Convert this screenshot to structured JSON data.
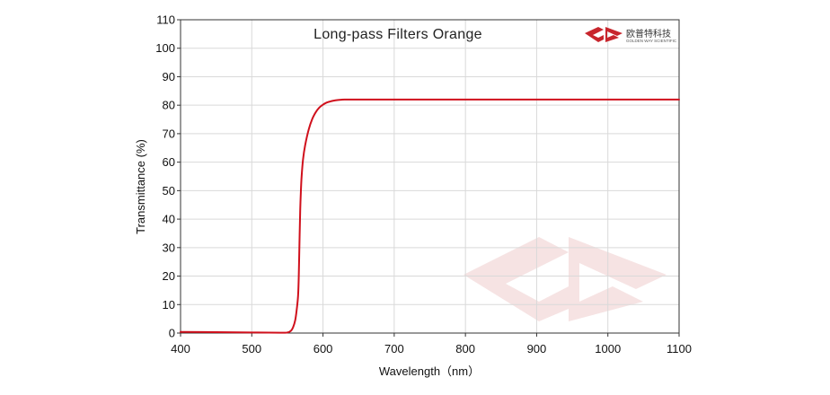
{
  "chart_data": {
    "type": "line",
    "title": "Long-pass Filters Orange",
    "xlabel": "Wavelength（nm）",
    "ylabel": "Transmittance (%)",
    "xlim": [
      400,
      1100
    ],
    "ylim": [
      0,
      110
    ],
    "xticks": [
      "400",
      "500",
      "600",
      "700",
      "800",
      "900",
      "1000",
      "1100"
    ],
    "yticks": [
      "0",
      "10",
      "20",
      "30",
      "40",
      "50",
      "60",
      "70",
      "80",
      "90",
      "100",
      "110"
    ],
    "grid": true,
    "legend": "none",
    "series": [
      {
        "color": "#d0101c",
        "x": [
          400,
          450,
          500,
          540,
          550,
          555,
          558,
          561,
          563,
          565,
          566,
          567,
          568,
          569,
          570,
          572,
          575,
          580,
          585,
          590,
          595,
          600,
          605,
          610,
          615,
          620,
          625,
          630,
          640,
          700,
          800,
          900,
          1000,
          1100
        ],
        "y": [
          0.4,
          0.3,
          0.2,
          0.1,
          0.2,
          0.8,
          2.0,
          4.5,
          8.0,
          13.0,
          20.0,
          32.0,
          43.0,
          50.0,
          55.0,
          61.0,
          66.0,
          71.5,
          75.2,
          77.6,
          79.2,
          80.2,
          80.9,
          81.3,
          81.6,
          81.8,
          81.9,
          82.0,
          82.0,
          82.0,
          82.0,
          82.0,
          82.0,
          82.0
        ]
      }
    ]
  },
  "logo": {
    "text_cn": "欧普特科技",
    "text_en": "GOLDEN WAY SCIENTIFIC",
    "color": "#c8262d"
  },
  "colors": {
    "grid": "#d9d9d9",
    "axis": "#333333",
    "watermark": "#f2dada"
  }
}
